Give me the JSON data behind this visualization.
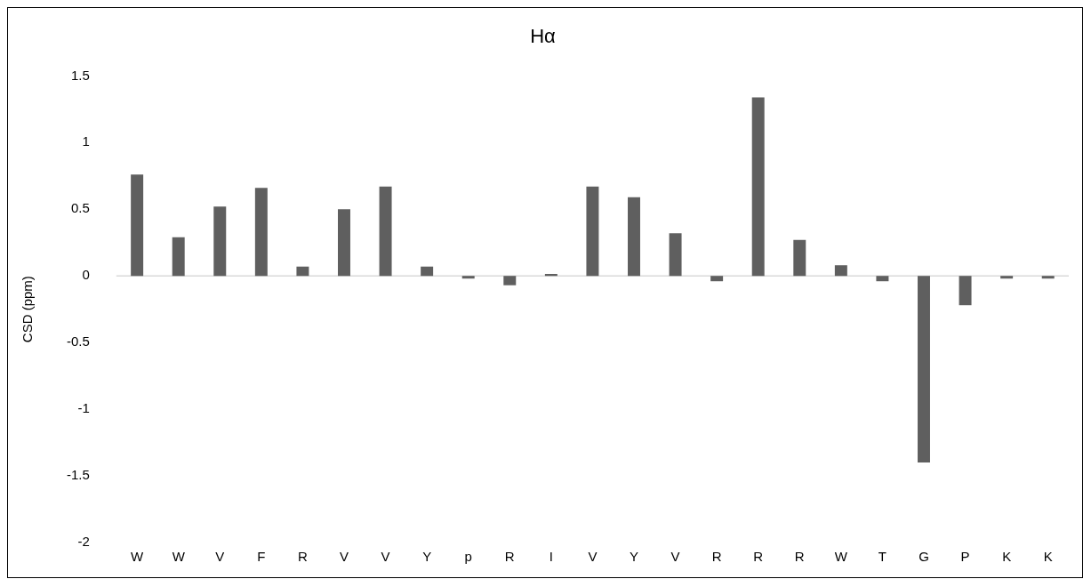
{
  "chart_data": {
    "type": "bar",
    "title": "Hα",
    "ylabel": "CSD (ppm)",
    "categories": [
      "W",
      "W",
      "V",
      "F",
      "R",
      "V",
      "V",
      "Y",
      "p",
      "R",
      "I",
      "V",
      "Y",
      "V",
      "R",
      "R",
      "R",
      "W",
      "T",
      "G",
      "P",
      "K",
      "K"
    ],
    "values": [
      0.76,
      0.29,
      0.52,
      0.66,
      0.07,
      0.5,
      0.67,
      0.07,
      -0.02,
      -0.07,
      0.015,
      0.67,
      0.59,
      0.32,
      -0.04,
      1.34,
      0.27,
      0.08,
      -0.04,
      -1.4,
      -0.22,
      -0.02,
      -0.02
    ],
    "color": "#5f5f5f",
    "ylim": [
      -2,
      1.5
    ],
    "yticks": [
      -2,
      -1.5,
      -1,
      -0.5,
      0,
      0.5,
      1,
      1.5
    ],
    "grid": false,
    "ref_lines": [
      {
        "axis": "y",
        "value": 0,
        "color": "#d9d9d9"
      }
    ]
  }
}
